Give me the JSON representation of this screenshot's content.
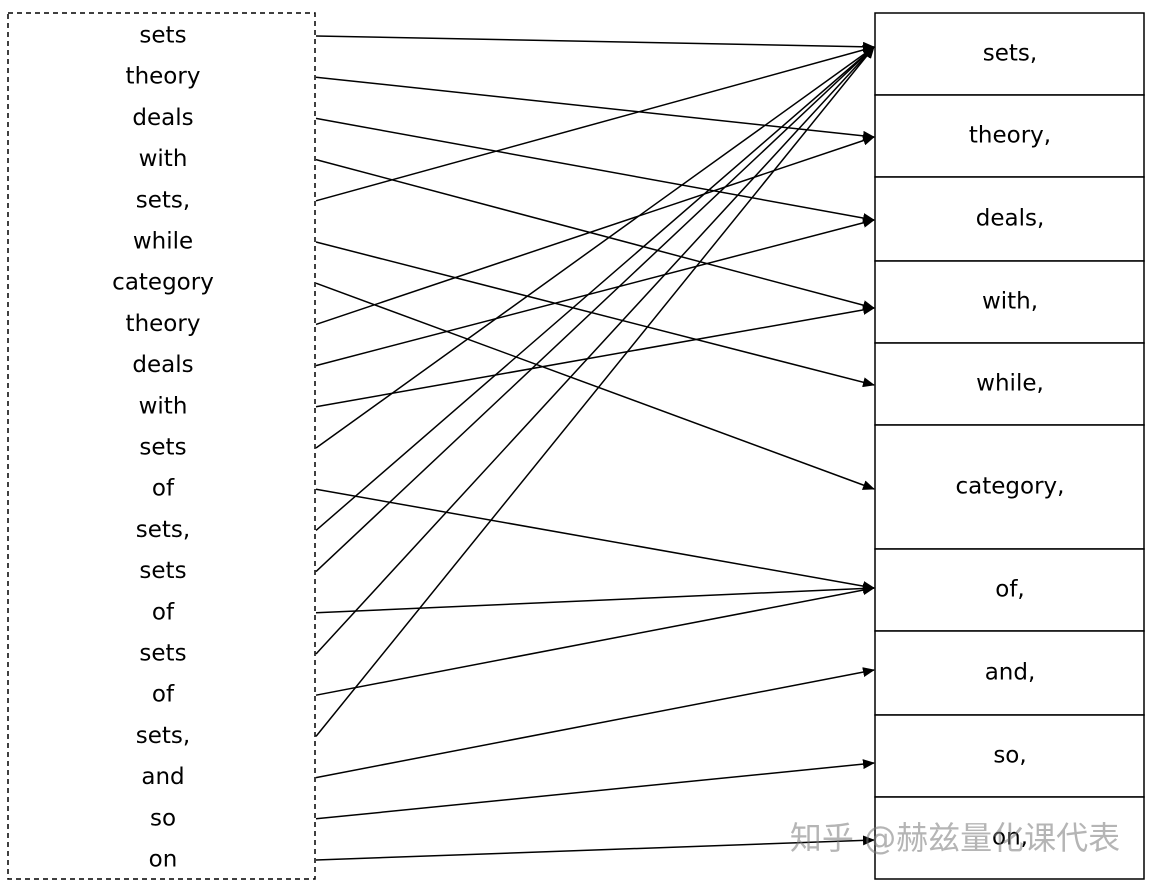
{
  "left_words": [
    "sets",
    "theory",
    "deals",
    "with",
    "sets,",
    "while",
    "category",
    "theory",
    "deals",
    "with",
    "sets",
    "of",
    "sets,",
    "sets",
    "of",
    "sets",
    "of",
    "sets,",
    "and",
    "so",
    "on"
  ],
  "right_words": [
    "sets,",
    "theory,",
    "deals,",
    "with,",
    "while,",
    "category,",
    "of,",
    "and,",
    "so,",
    "on,"
  ],
  "edges": [
    [
      0,
      0
    ],
    [
      1,
      1
    ],
    [
      2,
      2
    ],
    [
      3,
      3
    ],
    [
      4,
      0
    ],
    [
      5,
      4
    ],
    [
      6,
      5
    ],
    [
      7,
      1
    ],
    [
      8,
      2
    ],
    [
      9,
      3
    ],
    [
      10,
      0
    ],
    [
      11,
      6
    ],
    [
      12,
      0
    ],
    [
      13,
      0
    ],
    [
      14,
      6
    ],
    [
      15,
      0
    ],
    [
      16,
      6
    ],
    [
      17,
      0
    ],
    [
      18,
      7
    ],
    [
      19,
      8
    ],
    [
      20,
      9
    ]
  ],
  "watermark": "知乎 @赫兹量化课代表"
}
